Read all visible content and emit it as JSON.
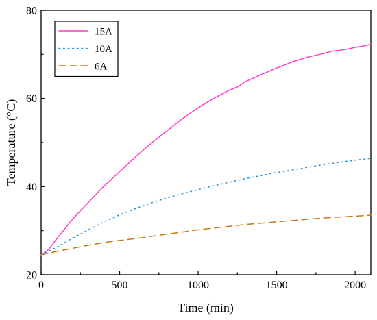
{
  "chart_data": {
    "type": "line",
    "title": "",
    "xlabel": "Time (min)",
    "ylabel": "Temperature (°C)",
    "xlim": [
      0,
      2100
    ],
    "ylim": [
      20,
      80
    ],
    "x_ticks": [
      0,
      500,
      1000,
      1500,
      2000
    ],
    "y_ticks": [
      20,
      40,
      60,
      80
    ],
    "grid": false,
    "legend_position": "top-left",
    "series": [
      {
        "name": "15A",
        "color": "#ff3fbf",
        "style": "solid",
        "x": [
          0,
          50,
          100,
          200,
          300,
          400,
          500,
          600,
          700,
          800,
          900,
          1000,
          1100,
          1200,
          1250,
          1300,
          1400,
          1500,
          1600,
          1700,
          1800,
          1850,
          1900,
          1950,
          2000,
          2050,
          2100
        ],
        "y": [
          24.5,
          25.8,
          28.2,
          32.6,
          36.4,
          40.1,
          43.4,
          46.7,
          49.8,
          52.6,
          55.4,
          57.9,
          60.0,
          61.9,
          62.6,
          63.8,
          65.4,
          66.9,
          68.3,
          69.4,
          70.2,
          70.7,
          70.9,
          71.2,
          71.6,
          71.9,
          72.3
        ]
      },
      {
        "name": "10A",
        "color": "#1f8fe0",
        "style": "dotted",
        "x": [
          0,
          100,
          200,
          300,
          400,
          500,
          600,
          700,
          800,
          900,
          1000,
          1100,
          1200,
          1300,
          1400,
          1500,
          1600,
          1700,
          1800,
          1900,
          2000,
          2100
        ],
        "y": [
          24.5,
          26.3,
          28.3,
          30.2,
          32.0,
          33.6,
          35.0,
          36.3,
          37.4,
          38.4,
          39.3,
          40.2,
          41.0,
          41.8,
          42.5,
          43.2,
          43.8,
          44.4,
          45.0,
          45.5,
          46.0,
          46.4
        ]
      },
      {
        "name": "6A",
        "color": "#c97a10",
        "style": "dashed",
        "x": [
          0,
          100,
          200,
          300,
          400,
          500,
          600,
          700,
          800,
          900,
          1000,
          1100,
          1200,
          1300,
          1400,
          1500,
          1600,
          1700,
          1800,
          1900,
          2000,
          2100
        ],
        "y": [
          24.5,
          25.3,
          26.0,
          26.7,
          27.3,
          27.8,
          28.2,
          28.7,
          29.2,
          29.7,
          30.2,
          30.6,
          31.0,
          31.4,
          31.7,
          32.0,
          32.3,
          32.6,
          32.9,
          33.1,
          33.3,
          33.5
        ]
      }
    ]
  }
}
